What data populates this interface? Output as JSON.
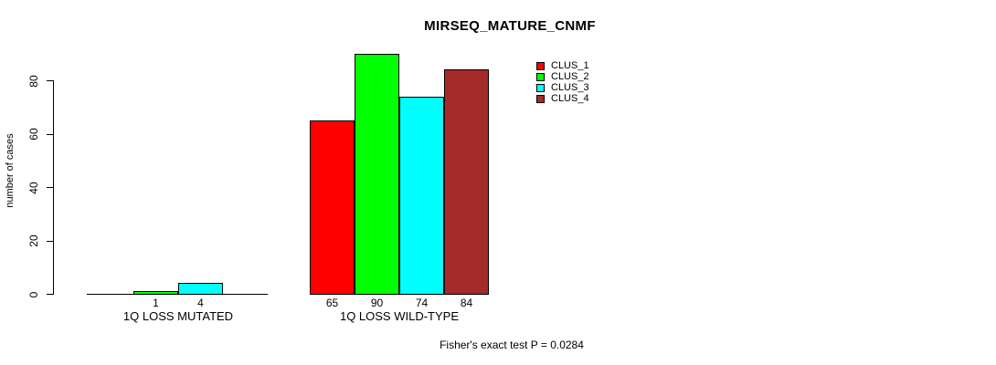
{
  "chart_data": {
    "type": "bar",
    "title": "MIRSEQ_MATURE_CNMF",
    "ylabel": "number of cases",
    "xlabel": "",
    "categories": [
      "1Q LOSS MUTATED",
      "1Q LOSS WILD-TYPE"
    ],
    "series": [
      {
        "name": "CLUS_1",
        "color": "#FF0000",
        "values": [
          0,
          65
        ]
      },
      {
        "name": "CLUS_2",
        "color": "#00FF00",
        "values": [
          1,
          90
        ]
      },
      {
        "name": "CLUS_3",
        "color": "#00FFFF",
        "values": [
          4,
          74
        ]
      },
      {
        "name": "CLUS_4",
        "color": "#A52A2A",
        "values": [
          0,
          84
        ]
      }
    ],
    "bar_value_labels": [
      [
        "",
        "1",
        "4",
        ""
      ],
      [
        "65",
        "90",
        "74",
        "84"
      ]
    ],
    "yticks": [
      0,
      20,
      40,
      60,
      80
    ],
    "ylim": [
      0,
      90
    ],
    "grid": false,
    "legend_position": "top-right",
    "annotation": "Fisher's exact test P = 0.0284",
    "axis_color": "#000000",
    "background": "#FFFFFF"
  }
}
